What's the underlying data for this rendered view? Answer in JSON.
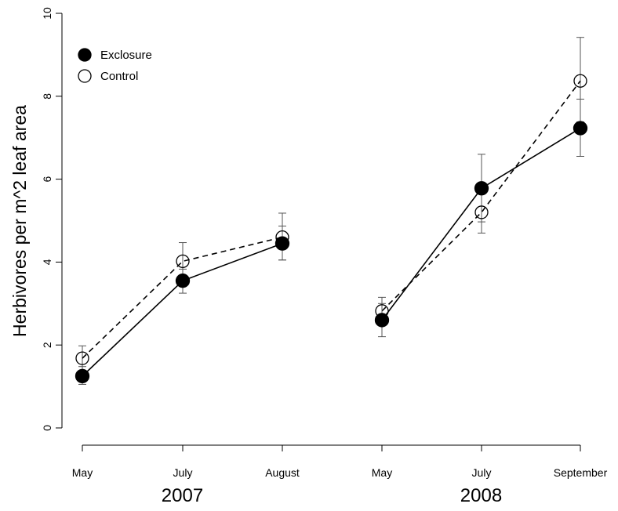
{
  "chart_data": {
    "type": "line",
    "title": "",
    "xlabel": "",
    "ylabel": "Herbivores per m^2 leaf area",
    "ylim": [
      0,
      10
    ],
    "yticks": [
      0,
      2,
      4,
      6,
      8,
      10
    ],
    "grid": false,
    "legend_position": "top-left",
    "categories": [
      "May",
      "July",
      "August",
      "May",
      "July",
      "September"
    ],
    "groups": [
      {
        "label": "2007",
        "indices": [
          0,
          1,
          2
        ]
      },
      {
        "label": "2008",
        "indices": [
          3,
          4,
          5
        ]
      }
    ],
    "series": [
      {
        "name": "Exclosure",
        "marker": "filled-circle",
        "line": "solid",
        "values": [
          1.25,
          3.55,
          4.45,
          2.6,
          5.78,
          7.23
        ],
        "err_low": [
          1.05,
          3.25,
          4.05,
          2.2,
          4.97,
          6.55
        ],
        "err_high": [
          1.48,
          3.83,
          4.87,
          3.0,
          6.6,
          7.93
        ]
      },
      {
        "name": "Control",
        "marker": "open-circle",
        "line": "dashed",
        "values": [
          1.68,
          4.02,
          4.6,
          2.82,
          5.2,
          8.37
        ],
        "err_low": [
          1.38,
          3.55,
          4.05,
          2.48,
          4.7,
          7.38
        ],
        "err_high": [
          1.98,
          4.47,
          5.18,
          3.15,
          5.7,
          9.42
        ]
      }
    ]
  }
}
